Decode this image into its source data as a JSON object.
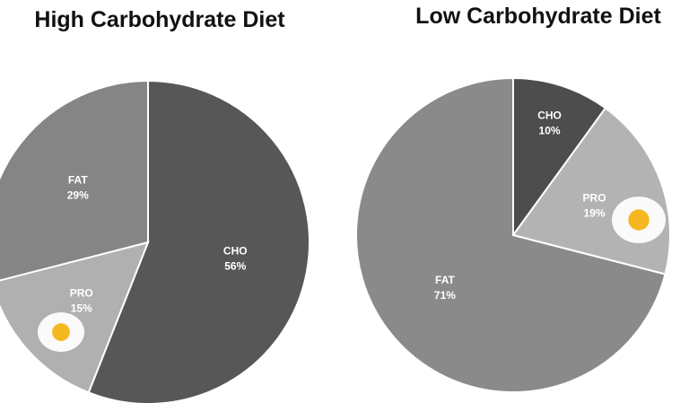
{
  "chart_data": [
    {
      "type": "pie",
      "title": "High Carbohydrate Diet",
      "categories": [
        "CHO",
        "PRO",
        "FAT"
      ],
      "values": [
        56,
        15,
        29
      ],
      "value_labels": [
        "56%",
        "15%",
        "29%"
      ],
      "colors": [
        "#575757",
        "#b0b0b0",
        "#858585"
      ]
    },
    {
      "type": "pie",
      "title": "Low Carbohydrate Diet",
      "categories": [
        "CHO",
        "PRO",
        "FAT"
      ],
      "values": [
        10,
        19,
        71
      ],
      "value_labels": [
        "10%",
        "19%",
        "71%"
      ],
      "colors": [
        "#4d4d4d",
        "#b3b3b3",
        "#8a8a8a"
      ]
    }
  ]
}
